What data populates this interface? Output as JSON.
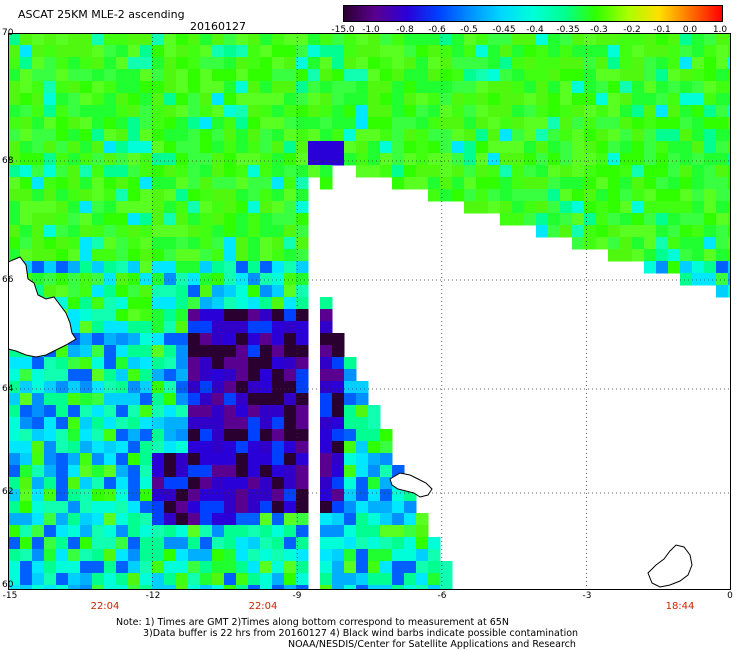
{
  "header": {
    "title": "ASCAT 25KM MLE-2 ascending",
    "date": "20160127"
  },
  "colorbar": {
    "labels": [
      "-15.0",
      "-1.0",
      "-0.8",
      "-0.6",
      "-0.5",
      "-0.45",
      "-0.4",
      "-0.35",
      "-0.3",
      "-0.2",
      "-0.1",
      "0.0",
      "1.0"
    ],
    "colors": [
      "#2a0030",
      "#5a0090",
      "#2a00d8",
      "#0040ff",
      "#0090ff",
      "#00d8ff",
      "#00ffd8",
      "#00ff90",
      "#30ff00",
      "#a8ff00",
      "#ffe000",
      "#ff7000",
      "#ff0000"
    ]
  },
  "map": {
    "lat_labels": [
      "70",
      "68",
      "66",
      "64",
      "62",
      "60"
    ],
    "lon_labels": [
      "-15",
      "-12",
      "-9",
      "-6",
      "-3",
      "0"
    ],
    "pass_times": [
      "22:04",
      "22:04",
      "18:44"
    ],
    "time_color": "#cc2200",
    "lat_range": [
      60,
      70
    ],
    "lon_range": [
      -15,
      0
    ]
  },
  "footer": {
    "note_line1": "Note: 1) Times are GMT 2)Times along bottom correspond to measurement at 65N",
    "note_line2": "3)Data buffer is 22 hrs from 20160127 4) Black wind barbs indicate possible contamination",
    "note_line3": "NOAA/NESDIS/Center for Satellite Applications and Research"
  }
}
